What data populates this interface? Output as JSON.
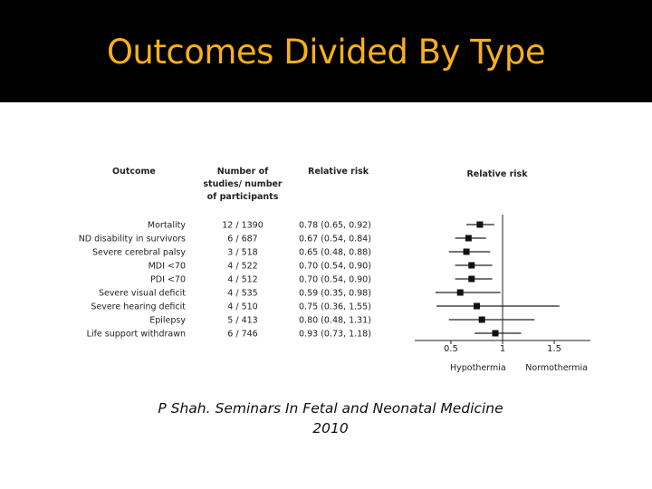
{
  "slide": {
    "title": "Outcomes Divided By Type"
  },
  "caption": {
    "line1": "P Shah. Seminars In Fetal and Neonatal Medicine",
    "line2": "2010"
  },
  "colors": {
    "title": "#f7b01c",
    "title_bar": "#000000"
  },
  "chart_data": {
    "type": "forest",
    "table_headers": {
      "outcome": "Outcome",
      "studies": [
        "Number of",
        "studies/ number",
        "of participants"
      ],
      "rr": "Relative risk"
    },
    "plot_title": "Relative risk",
    "xlabel_left": "Hypothermia",
    "xlabel_right": "Normothermia",
    "xlim": [
      0.15,
      1.85
    ],
    "xticks": [
      {
        "value": 0.5,
        "label": "0.5"
      },
      {
        "value": 1,
        "label": "1"
      },
      {
        "value": 1.5,
        "label": "1.5"
      }
    ],
    "reference_line": 1,
    "rows": [
      {
        "outcome": "Mortality",
        "studies": "12 / 1390",
        "rr_text": "0.78 (0.65, 0.92)",
        "rr": 0.78,
        "lo": 0.65,
        "hi": 0.92
      },
      {
        "outcome": "ND disability in survivors",
        "studies": "6 / 687",
        "rr_text": "0.67 (0.54, 0.84)",
        "rr": 0.67,
        "lo": 0.54,
        "hi": 0.84
      },
      {
        "outcome": "Severe cerebral palsy",
        "studies": "3 / 518",
        "rr_text": "0.65 (0.48, 0.88)",
        "rr": 0.65,
        "lo": 0.48,
        "hi": 0.88
      },
      {
        "outcome": "MDI <70",
        "studies": "4 / 522",
        "rr_text": "0.70 (0.54, 0.90)",
        "rr": 0.7,
        "lo": 0.54,
        "hi": 0.9
      },
      {
        "outcome": "PDI <70",
        "studies": "4 / 512",
        "rr_text": "0.70 (0.54, 0.90)",
        "rr": 0.7,
        "lo": 0.54,
        "hi": 0.9
      },
      {
        "outcome": "Severe visual deficit",
        "studies": "4 / 535",
        "rr_text": "0.59 (0.35, 0.98)",
        "rr": 0.59,
        "lo": 0.35,
        "hi": 0.98
      },
      {
        "outcome": "Severe hearing deficit",
        "studies": "4 / 510",
        "rr_text": "0.75 (0.36, 1.55)",
        "rr": 0.75,
        "lo": 0.36,
        "hi": 1.55
      },
      {
        "outcome": "Epilepsy",
        "studies": "5 / 413",
        "rr_text": "0.80 (0.48, 1.31)",
        "rr": 0.8,
        "lo": 0.48,
        "hi": 1.31
      },
      {
        "outcome": "Life support withdrawn",
        "studies": "6 / 746",
        "rr_text": "0.93 (0.73, 1.18)",
        "rr": 0.93,
        "lo": 0.73,
        "hi": 1.18
      }
    ]
  }
}
